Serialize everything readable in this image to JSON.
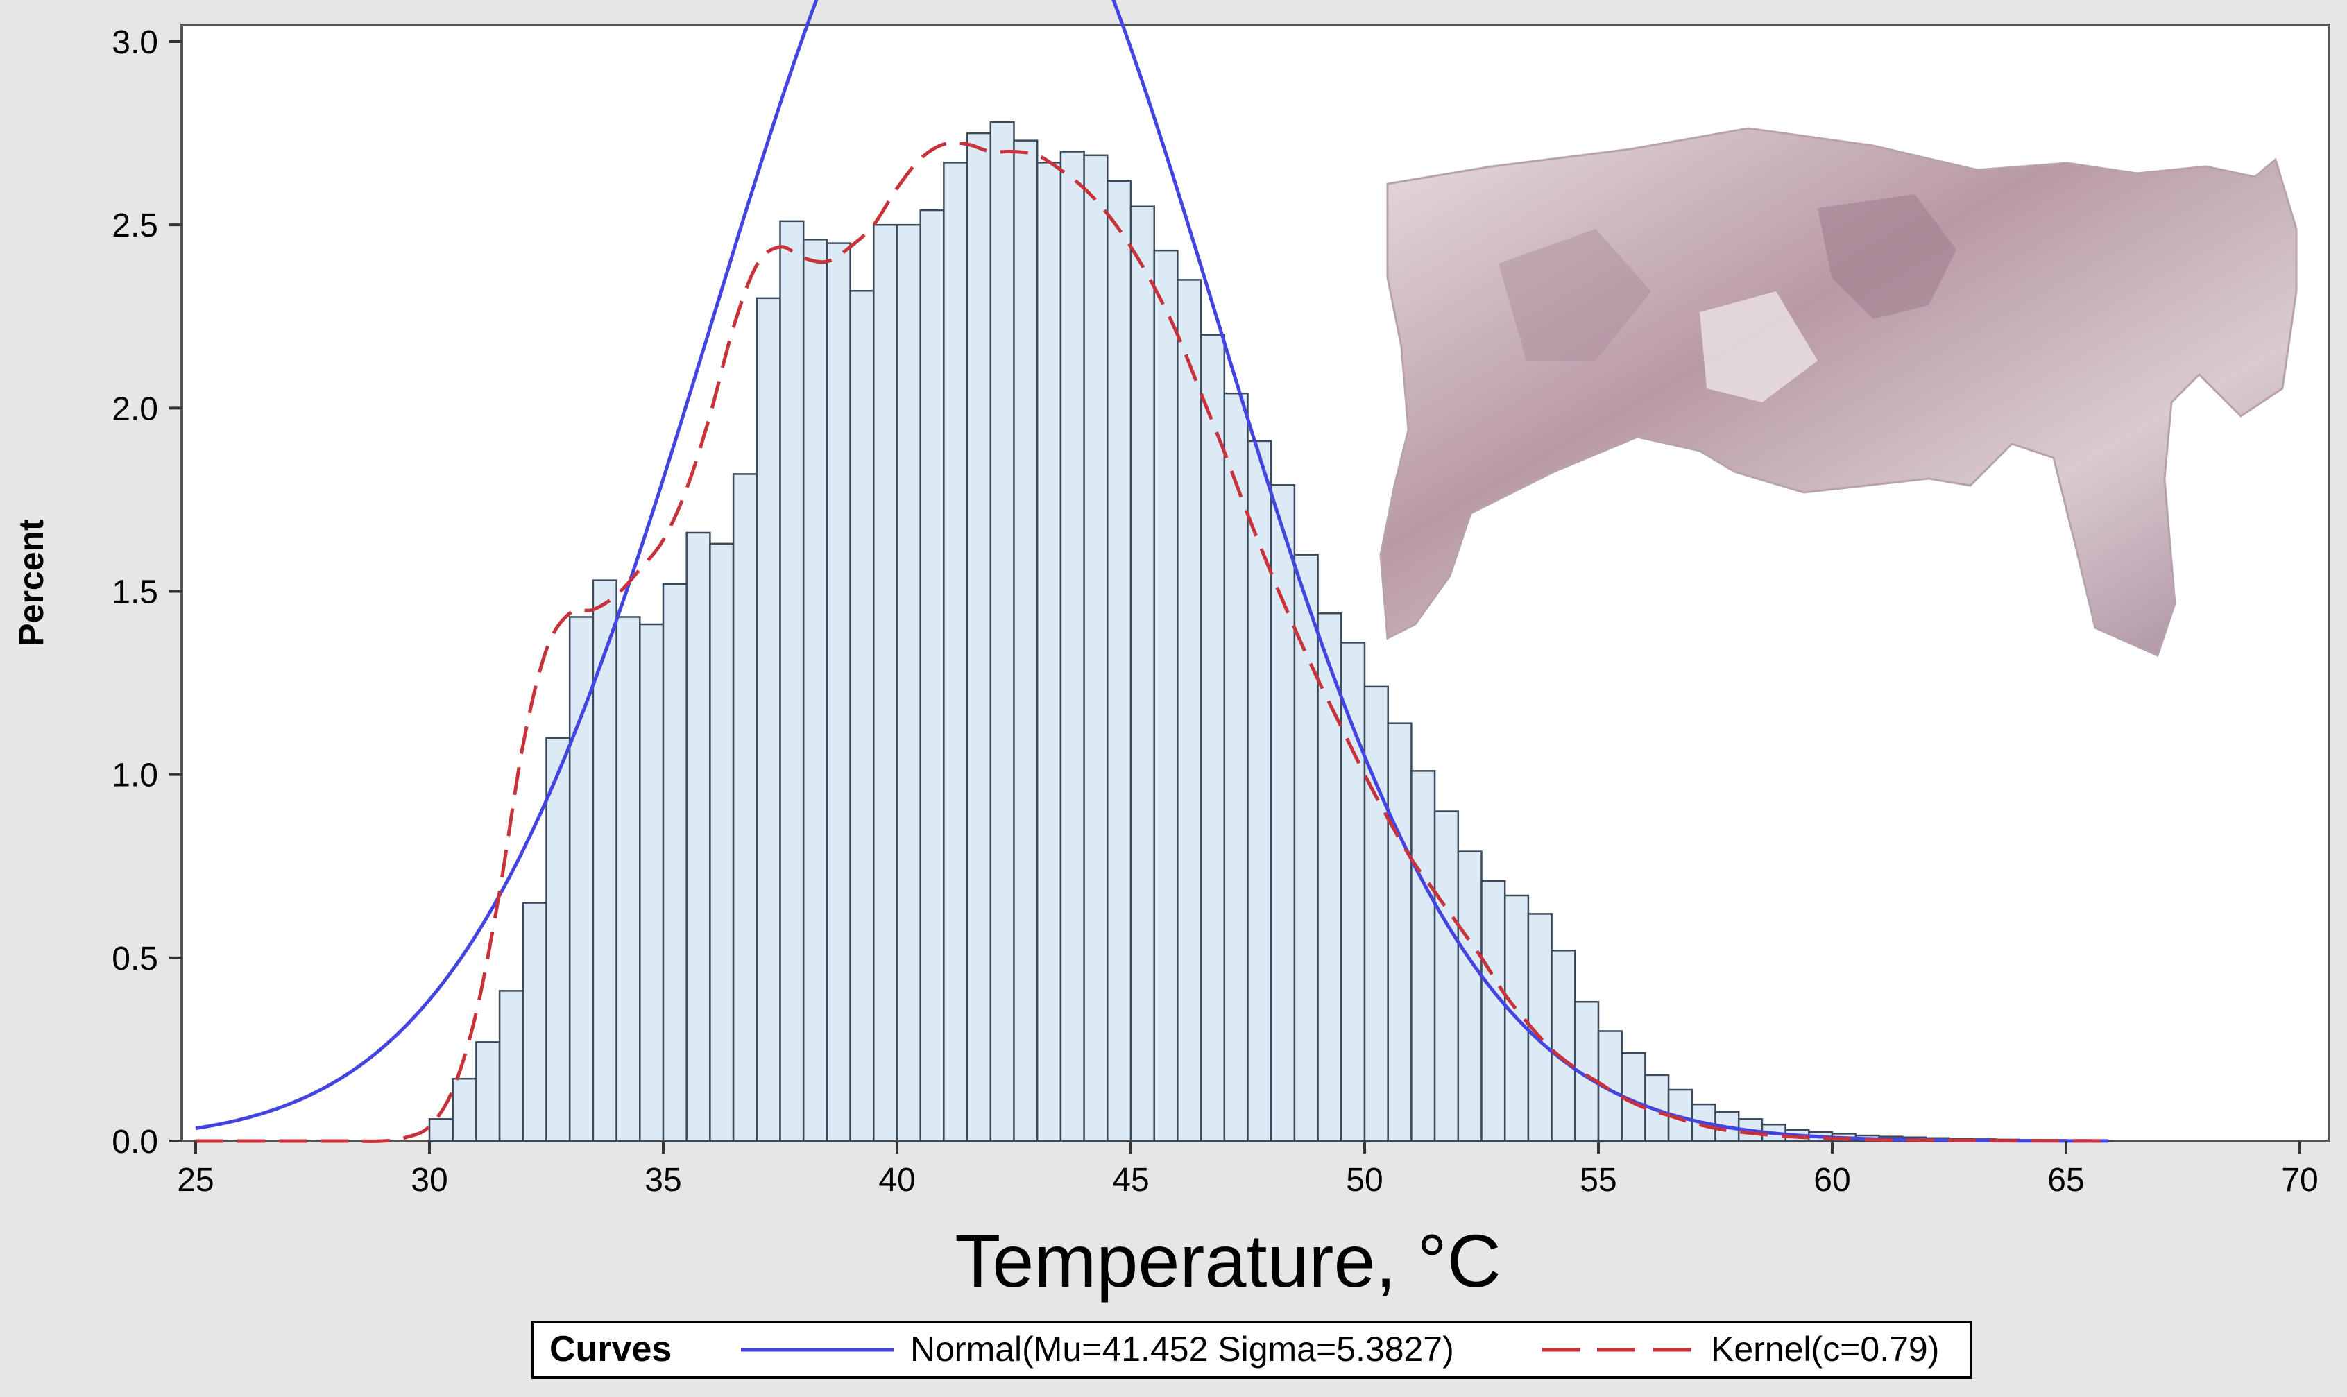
{
  "chart_data": {
    "type": "bar",
    "title": "",
    "xlabel": "Temperature, °C",
    "ylabel": "Percent",
    "xlim": [
      25,
      70
    ],
    "ylim": [
      0,
      3.0
    ],
    "x_ticks": [
      "25",
      "30",
      "35",
      "40",
      "45",
      "50",
      "55",
      "60",
      "65",
      "70"
    ],
    "y_ticks": [
      "0.0",
      "0.5",
      "1.0",
      "1.5",
      "2.0",
      "2.5",
      "3.0"
    ],
    "bin_width": 0.5,
    "bin_starts": [
      30.0,
      30.5,
      31.0,
      31.5,
      32.0,
      32.5,
      33.0,
      33.5,
      34.0,
      34.5,
      35.0,
      35.5,
      36.0,
      36.5,
      37.0,
      37.5,
      38.0,
      38.5,
      39.0,
      39.5,
      40.0,
      40.5,
      41.0,
      41.5,
      42.0,
      42.5,
      43.0,
      43.5,
      44.0,
      44.5,
      45.0,
      45.5,
      46.0,
      46.5,
      47.0,
      47.5,
      48.0,
      48.5,
      49.0,
      49.5,
      50.0,
      50.5,
      51.0,
      51.5,
      52.0,
      52.5,
      53.0,
      53.5,
      54.0,
      54.5,
      55.0,
      55.5,
      56.0,
      56.5,
      57.0,
      57.5,
      58.0,
      58.5,
      59.0,
      59.5,
      60.0,
      60.5,
      61.0,
      61.5,
      62.0,
      62.5,
      63.0,
      63.5,
      64.0,
      64.5,
      65.0,
      65.5
    ],
    "values": [
      0.06,
      0.17,
      0.27,
      0.41,
      0.65,
      1.1,
      1.43,
      1.53,
      1.43,
      1.41,
      1.52,
      1.66,
      1.63,
      1.82,
      2.3,
      2.51,
      2.46,
      2.45,
      2.32,
      2.5,
      2.5,
      2.54,
      2.67,
      2.75,
      2.78,
      2.73,
      2.67,
      2.7,
      2.69,
      2.62,
      2.55,
      2.43,
      2.35,
      2.2,
      2.04,
      1.91,
      1.79,
      1.6,
      1.44,
      1.36,
      1.24,
      1.14,
      1.01,
      0.9,
      0.79,
      0.71,
      0.67,
      0.62,
      0.52,
      0.38,
      0.3,
      0.24,
      0.18,
      0.14,
      0.1,
      0.08,
      0.06,
      0.045,
      0.03,
      0.025,
      0.02,
      0.015,
      0.012,
      0.01,
      0.008,
      0.006,
      0.005,
      0.004,
      0.003,
      0.003,
      0.002,
      0.001
    ],
    "series": [
      {
        "name": "Normal(Mu=41.452 Sigma=5.3827)",
        "kind": "normal",
        "mu": 41.452,
        "sigma": 5.3827,
        "color": "#4444e0",
        "style": "solid"
      },
      {
        "name": "Kernel(c=0.79)",
        "kind": "kernel",
        "color": "#c8323a",
        "style": "dashed",
        "x": [
          25,
          28,
          29,
          29.5,
          30.0,
          30.5,
          31.0,
          31.5,
          32.0,
          32.5,
          33.0,
          33.5,
          34.0,
          34.5,
          35.0,
          35.5,
          36.0,
          36.5,
          37.0,
          37.5,
          38.0,
          38.5,
          39.0,
          39.5,
          40.0,
          40.5,
          41.0,
          41.5,
          42.0,
          42.5,
          43.0,
          43.5,
          44.0,
          44.5,
          45.0,
          45.5,
          46.0,
          46.5,
          47.0,
          47.5,
          48.0,
          48.5,
          49.0,
          49.5,
          50.0,
          50.5,
          51.0,
          51.5,
          52.0,
          52.5,
          53.0,
          53.5,
          54.0,
          54.5,
          55.0,
          55.5,
          56.0,
          56.5,
          57.0,
          57.5,
          58.0,
          59.0,
          60.0,
          61.0,
          62.0,
          64.0,
          66.0
        ],
        "y": [
          0.0,
          0.0,
          0.0,
          0.01,
          0.04,
          0.14,
          0.35,
          0.68,
          1.08,
          1.34,
          1.44,
          1.45,
          1.49,
          1.56,
          1.64,
          1.78,
          1.98,
          2.22,
          2.39,
          2.44,
          2.41,
          2.4,
          2.44,
          2.5,
          2.6,
          2.68,
          2.72,
          2.72,
          2.7,
          2.7,
          2.69,
          2.65,
          2.6,
          2.53,
          2.44,
          2.33,
          2.2,
          2.04,
          1.88,
          1.71,
          1.55,
          1.4,
          1.26,
          1.13,
          1.0,
          0.88,
          0.77,
          0.68,
          0.59,
          0.5,
          0.4,
          0.32,
          0.25,
          0.2,
          0.16,
          0.12,
          0.09,
          0.07,
          0.05,
          0.035,
          0.025,
          0.013,
          0.007,
          0.003,
          0.002,
          0.001,
          0.0
        ]
      }
    ],
    "legend": {
      "title": "Curves",
      "position": "bottom-center"
    },
    "bar_fill": "#dbeaf5",
    "bar_stroke": "#3a4a5a",
    "grid": false,
    "inset_image": "thermal-image-of-animal-carcass"
  }
}
